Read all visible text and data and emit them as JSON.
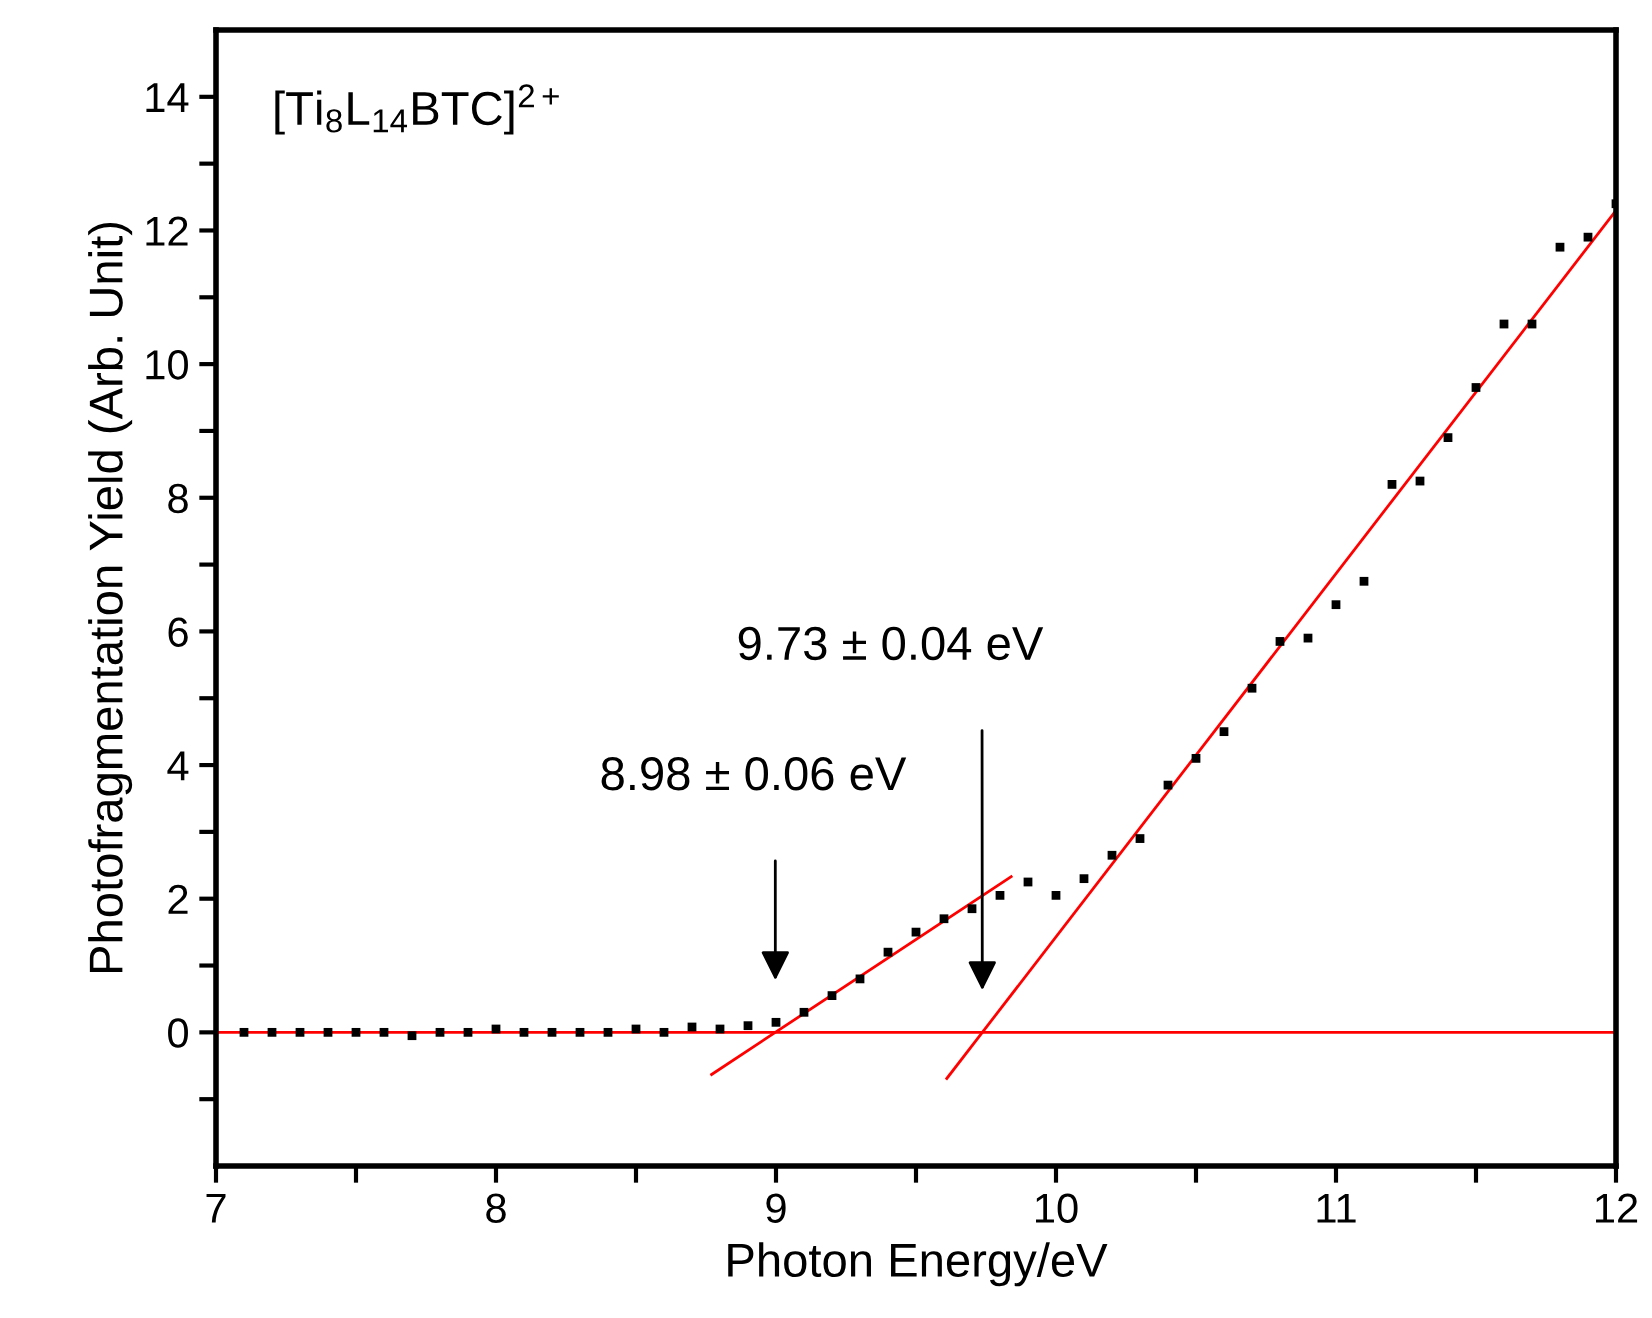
{
  "chart_data": {
    "type": "scatter",
    "xlabel": "Photon Energy/eV",
    "ylabel": "Photofragmentation Yield (Arb. Unit)",
    "xlim": [
      7,
      12
    ],
    "ylim": [
      -2,
      15
    ],
    "xticks": [
      7,
      {
        "value": 7.5,
        "label": null
      },
      8,
      {
        "value": 8.5,
        "label": null
      },
      9,
      {
        "value": 9.5,
        "label": null
      },
      10,
      {
        "value": 10.5,
        "label": null
      },
      11,
      {
        "value": 11.5,
        "label": null
      },
      12
    ],
    "yticks": [
      {
        "value": -1,
        "label": null
      },
      0,
      {
        "value": 1,
        "label": null
      },
      2,
      {
        "value": 3,
        "label": null
      },
      4,
      {
        "value": 5,
        "label": null
      },
      6,
      {
        "value": 7,
        "label": null
      },
      8,
      {
        "value": 9,
        "label": null
      },
      10,
      {
        "value": 11,
        "label": null
      },
      12,
      {
        "value": 13,
        "label": null
      },
      14
    ],
    "grid": false,
    "legend": false,
    "marker": "square",
    "x": [
      7.1,
      7.2,
      7.3,
      7.4,
      7.5,
      7.6,
      7.7,
      7.8,
      7.9,
      8.0,
      8.1,
      8.2,
      8.3,
      8.4,
      8.5,
      8.6,
      8.7,
      8.8,
      8.9,
      9.0,
      9.1,
      9.2,
      9.3,
      9.4,
      9.5,
      9.6,
      9.7,
      9.8,
      9.9,
      10.0,
      10.1,
      10.2,
      10.3,
      10.4,
      10.5,
      10.6,
      10.7,
      10.8,
      10.9,
      11.0,
      11.1,
      11.2,
      11.3,
      11.4,
      11.5,
      11.6,
      11.7,
      11.8,
      11.9,
      12.0
    ],
    "series": [
      {
        "color": "#000000",
        "values": [
          0,
          0,
          0,
          0,
          0,
          0,
          -0.05,
          0,
          0,
          0.05,
          0,
          0,
          0,
          0,
          0.05,
          0,
          0.08,
          0.05,
          0.1,
          0.15,
          0.3,
          0.55,
          0.8,
          1.2,
          1.5,
          1.7,
          1.85,
          2.05,
          2.25,
          2.05,
          2.3,
          2.65,
          2.9,
          3.7,
          4.1,
          4.5,
          5.15,
          5.85,
          5.9,
          6.4,
          6.75,
          8.2,
          8.25,
          8.9,
          9.65,
          10.6,
          10.6,
          11.75,
          11.9,
          12.4
        ]
      },
      {
        "type": "line",
        "color": "#ff0000",
        "marker": "none",
        "x": [
          8.77,
          9.84
        ],
        "values": [
          -0.63,
          2.33
        ]
      },
      {
        "type": "line",
        "color": "#ff0000",
        "marker": "none",
        "x": [
          9.61,
          12
        ],
        "values": [
          -0.69,
          12.3
        ]
      }
    ],
    "ref_lines": [
      {
        "axis": "y",
        "value": 0,
        "color": "#ff0000"
      }
    ],
    "annotations": [
      "[Ti$_{8}$L$_{14}$BTC]$^{2+}$",
      "8.98 ± 0.06 eV",
      "9.73 ± 0.04 eV"
    ]
  }
}
